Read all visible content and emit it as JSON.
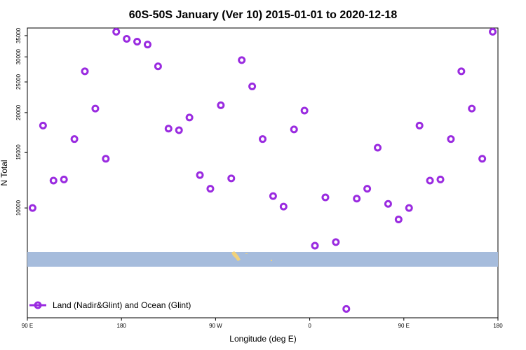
{
  "chart_data": {
    "type": "scatter",
    "title": "60S-50S January (Ver 10)   2015-01-01 to 2020-12-18",
    "xlabel": "Longitude (deg E)",
    "ylabel": "N Total",
    "xlim": [
      90,
      540
    ],
    "ylim": [
      4500,
      37000
    ],
    "y_scale": "log",
    "x_ticks": [
      {
        "value": 90,
        "label": "90 E"
      },
      {
        "value": 180,
        "label": "180"
      },
      {
        "value": 270,
        "label": "90 W"
      },
      {
        "value": 360,
        "label": "0"
      },
      {
        "value": 450,
        "label": "90 E"
      },
      {
        "value": 540,
        "label": "180"
      }
    ],
    "y_ticks": [
      10000,
      15000,
      20000,
      25000,
      30000,
      35000
    ],
    "grid": false,
    "legend_position": "bottom-left",
    "series": [
      {
        "name": "Land (Nadir&Glint) and Ocean (Glint)",
        "color": "#9a2be0",
        "marker": "open-circle",
        "x": [
          95,
          105,
          115,
          125,
          135,
          145,
          155,
          165,
          175,
          185,
          195,
          205,
          215,
          225,
          235,
          245,
          255,
          265,
          275,
          285,
          295,
          305,
          315,
          325,
          335,
          345,
          355,
          365,
          375,
          385,
          395,
          405,
          415,
          425,
          435,
          445,
          455,
          465,
          475,
          485,
          495,
          505,
          515,
          525,
          535
        ],
        "y": [
          10000,
          18200,
          12200,
          12300,
          16500,
          27000,
          20600,
          14300,
          36000,
          34200,
          33500,
          32800,
          28000,
          17800,
          17600,
          19300,
          12700,
          11500,
          21100,
          12400,
          29300,
          24200,
          16500,
          10900,
          10100,
          17700,
          20300,
          7600,
          10800,
          7800,
          4800,
          10700,
          11500,
          15500,
          10300,
          9200,
          10000,
          18200,
          12200,
          12300,
          16500,
          27000,
          20600,
          14300,
          36000
        ]
      }
    ]
  }
}
